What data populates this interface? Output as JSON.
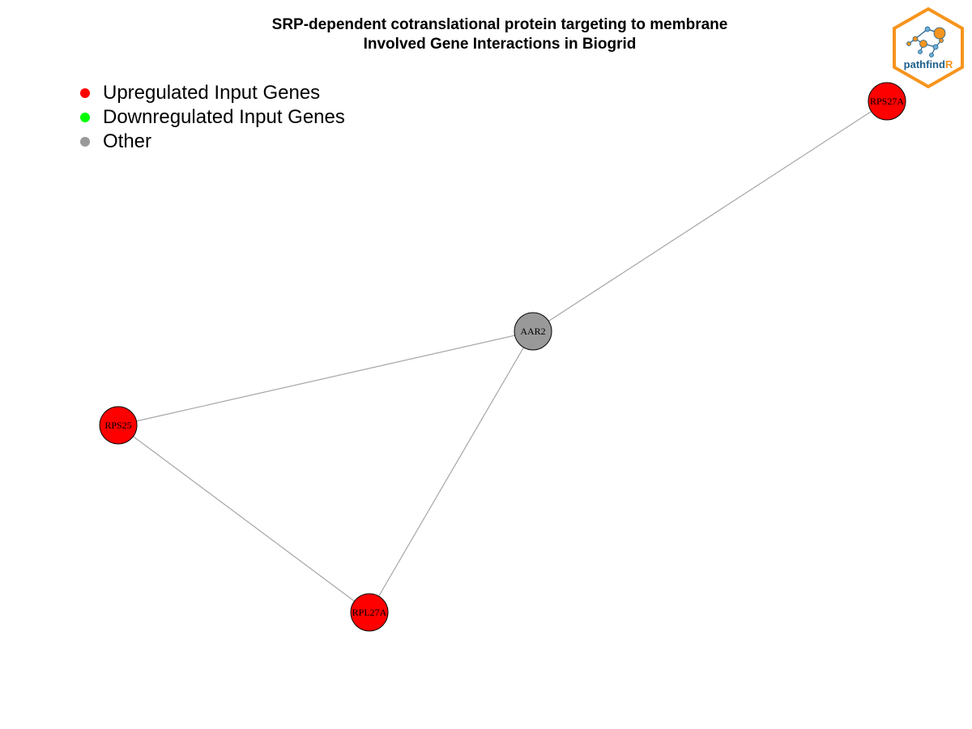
{
  "title": {
    "line1": "SRP-dependent cotranslational protein targeting to membrane",
    "line2": "Involved Gene Interactions in Biogrid"
  },
  "legend": [
    {
      "label": "Upregulated Input Genes",
      "color": "#ff0000"
    },
    {
      "label": "Downregulated Input Genes",
      "color": "#00ff00"
    },
    {
      "label": "Other",
      "color": "#999999"
    }
  ],
  "colors": {
    "upregulated": "#ff0000",
    "downregulated": "#00ff00",
    "other": "#999999",
    "edge": "#a6a6a6",
    "logo_orange": "#f7941d",
    "logo_blue": "#1f5f8b"
  },
  "nodes": [
    {
      "id": "RPS27A",
      "label": "RPS27A",
      "category": "upregulated"
    },
    {
      "id": "AAR2",
      "label": "AAR2",
      "category": "other"
    },
    {
      "id": "RPS25",
      "label": "RPS25",
      "category": "upregulated"
    },
    {
      "id": "RPL27A",
      "label": "RPL27A",
      "category": "upregulated"
    }
  ],
  "edges": [
    {
      "from": "AAR2",
      "to": "RPS27A"
    },
    {
      "from": "AAR2",
      "to": "RPS25"
    },
    {
      "from": "AAR2",
      "to": "RPL27A"
    },
    {
      "from": "RPS25",
      "to": "RPL27A"
    }
  ],
  "logo": {
    "text_main": "pathfind",
    "text_accent": "R"
  }
}
